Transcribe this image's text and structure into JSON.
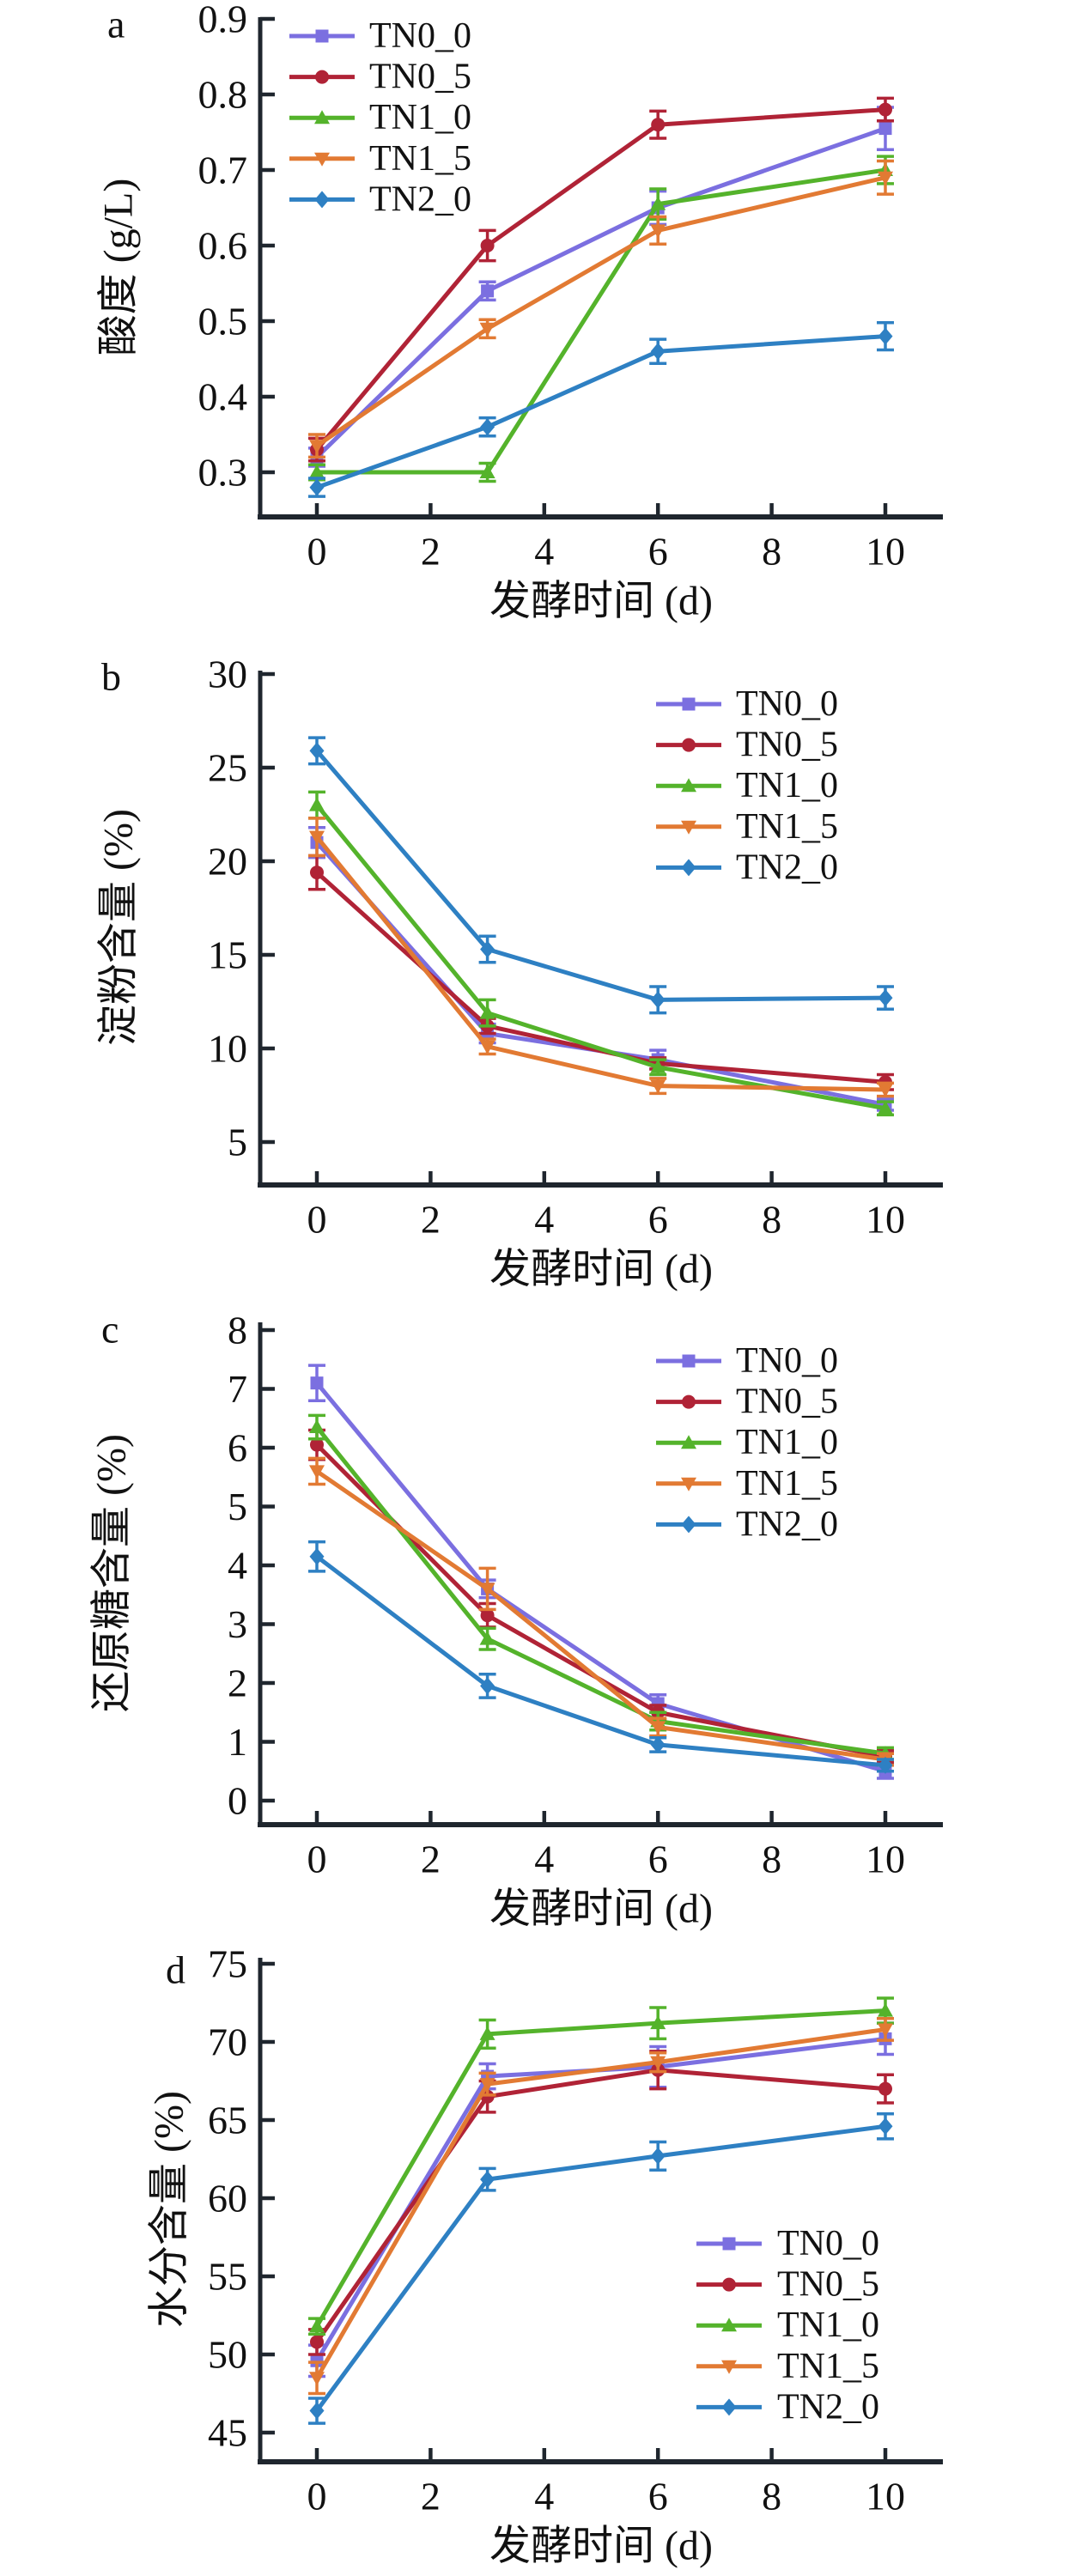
{
  "figure": {
    "background": "#ffffff",
    "axis_color": "#1f262e",
    "text_color": "#111111",
    "xlabel": "发酵时间 (d)"
  },
  "series_style": [
    {
      "name": "TN0_0",
      "color": "#7B6FE0",
      "marker": "square"
    },
    {
      "name": "TN0_5",
      "color": "#B02336",
      "marker": "circle"
    },
    {
      "name": "TN1_0",
      "color": "#54B32B",
      "marker": "triangle-up"
    },
    {
      "name": "TN1_5",
      "color": "#E27A33",
      "marker": "triangle-down"
    },
    {
      "name": "TN2_0",
      "color": "#2E80C3",
      "marker": "diamond"
    }
  ],
  "chart_data": [
    {
      "panel": "a",
      "type": "line",
      "x": [
        0,
        3,
        6,
        10
      ],
      "xticks": [
        0,
        2,
        4,
        6,
        8,
        10
      ],
      "xlabel": "发酵时间 (d)",
      "ylabel": "酸度 (g/L)",
      "ylim": [
        0.24,
        0.9
      ],
      "yticks": [
        0.3,
        0.4,
        0.5,
        0.6,
        0.7,
        0.8,
        0.9
      ],
      "legend_position": "inside-top-left",
      "series": [
        {
          "name": "TN0_0",
          "values": [
            0.32,
            0.54,
            0.65,
            0.755
          ],
          "errors": [
            0.012,
            0.012,
            0.022,
            0.028
          ]
        },
        {
          "name": "TN0_5",
          "values": [
            0.33,
            0.6,
            0.76,
            0.78
          ],
          "errors": [
            0.015,
            0.02,
            0.018,
            0.015
          ]
        },
        {
          "name": "TN1_0",
          "values": [
            0.3,
            0.3,
            0.655,
            0.7
          ],
          "errors": [
            0.01,
            0.012,
            0.02,
            0.018
          ]
        },
        {
          "name": "TN1_5",
          "values": [
            0.335,
            0.49,
            0.62,
            0.69
          ],
          "errors": [
            0.015,
            0.012,
            0.018,
            0.022
          ]
        },
        {
          "name": "TN2_0",
          "values": [
            0.28,
            0.36,
            0.46,
            0.48
          ],
          "errors": [
            0.012,
            0.012,
            0.016,
            0.018
          ]
        }
      ]
    },
    {
      "panel": "b",
      "type": "line",
      "x": [
        0,
        3,
        6,
        10
      ],
      "xticks": [
        0,
        2,
        4,
        6,
        8,
        10
      ],
      "xlabel": "发酵时间 (d)",
      "ylabel": "淀粉含量 (%)",
      "ylim": [
        4,
        30.5
      ],
      "yticks": [
        5,
        10,
        15,
        20,
        25,
        30
      ],
      "legend_position": "inside-top-right",
      "series": [
        {
          "name": "TN0_0",
          "values": [
            21.0,
            10.8,
            9.4,
            7.0
          ],
          "errors": [
            0.8,
            0.5,
            0.5,
            0.3
          ]
        },
        {
          "name": "TN0_5",
          "values": [
            19.4,
            11.2,
            9.2,
            8.2
          ],
          "errors": [
            0.9,
            0.4,
            0.3,
            0.4
          ]
        },
        {
          "name": "TN1_0",
          "values": [
            23.0,
            11.9,
            9.0,
            6.8
          ],
          "errors": [
            0.7,
            0.7,
            0.4,
            0.35
          ]
        },
        {
          "name": "TN1_5",
          "values": [
            21.3,
            10.1,
            8.0,
            7.8
          ],
          "errors": [
            1.0,
            0.4,
            0.4,
            0.35
          ]
        },
        {
          "name": "TN2_0",
          "values": [
            25.9,
            15.3,
            12.6,
            12.7
          ],
          "errors": [
            0.7,
            0.7,
            0.7,
            0.6
          ]
        }
      ]
    },
    {
      "panel": "c",
      "type": "line",
      "x": [
        0,
        3,
        6,
        10
      ],
      "xticks": [
        0,
        2,
        4,
        6,
        8,
        10
      ],
      "xlabel": "发酵时间 (d)",
      "ylabel": "还原糖含量 (%)",
      "ylim": [
        -0.4,
        8.1
      ],
      "yticks": [
        0,
        1,
        2,
        3,
        4,
        5,
        6,
        7,
        8
      ],
      "legend_position": "inside-top-right",
      "series": [
        {
          "name": "TN0_0",
          "values": [
            7.1,
            3.6,
            1.65,
            0.5
          ],
          "errors": [
            0.3,
            0.15,
            0.15,
            0.12
          ]
        },
        {
          "name": "TN0_5",
          "values": [
            6.05,
            3.15,
            1.5,
            0.75
          ],
          "errors": [
            0.25,
            0.2,
            0.12,
            0.1
          ]
        },
        {
          "name": "TN1_0",
          "values": [
            6.35,
            2.75,
            1.35,
            0.8
          ],
          "errors": [
            0.2,
            0.18,
            0.15,
            0.1
          ]
        },
        {
          "name": "TN1_5",
          "values": [
            5.6,
            3.6,
            1.25,
            0.7
          ],
          "errors": [
            0.22,
            0.35,
            0.15,
            0.1
          ]
        },
        {
          "name": "TN2_0",
          "values": [
            4.15,
            1.95,
            0.95,
            0.6
          ],
          "errors": [
            0.25,
            0.2,
            0.12,
            0.1
          ]
        }
      ]
    },
    {
      "panel": "d",
      "type": "line",
      "x": [
        0,
        3,
        6,
        10
      ],
      "xticks": [
        0,
        2,
        4,
        6,
        8,
        10
      ],
      "xlabel": "发酵时间 (d)",
      "ylabel": "水分含量 (%)",
      "ylim": [
        43.1,
        75.6
      ],
      "yticks": [
        45,
        50,
        55,
        60,
        65,
        70,
        75
      ],
      "legend_position": "inside-bottom-right",
      "series": [
        {
          "name": "TN0_0",
          "values": [
            49.6,
            67.8,
            68.4,
            70.2
          ],
          "errors": [
            1.0,
            0.8,
            1.3,
            1.0
          ]
        },
        {
          "name": "TN0_5",
          "values": [
            50.8,
            66.5,
            68.2,
            67.0
          ],
          "errors": [
            0.8,
            1.0,
            1.2,
            0.9
          ]
        },
        {
          "name": "TN1_0",
          "values": [
            51.8,
            70.5,
            71.2,
            72.0
          ],
          "errors": [
            0.5,
            0.9,
            1.0,
            0.8
          ]
        },
        {
          "name": "TN1_5",
          "values": [
            48.5,
            67.3,
            68.7,
            70.8
          ],
          "errors": [
            1.0,
            0.7,
            0.6,
            0.7
          ]
        },
        {
          "name": "TN2_0",
          "values": [
            46.4,
            61.2,
            62.7,
            64.6
          ],
          "errors": [
            0.8,
            0.7,
            0.9,
            0.8
          ]
        }
      ]
    }
  ]
}
